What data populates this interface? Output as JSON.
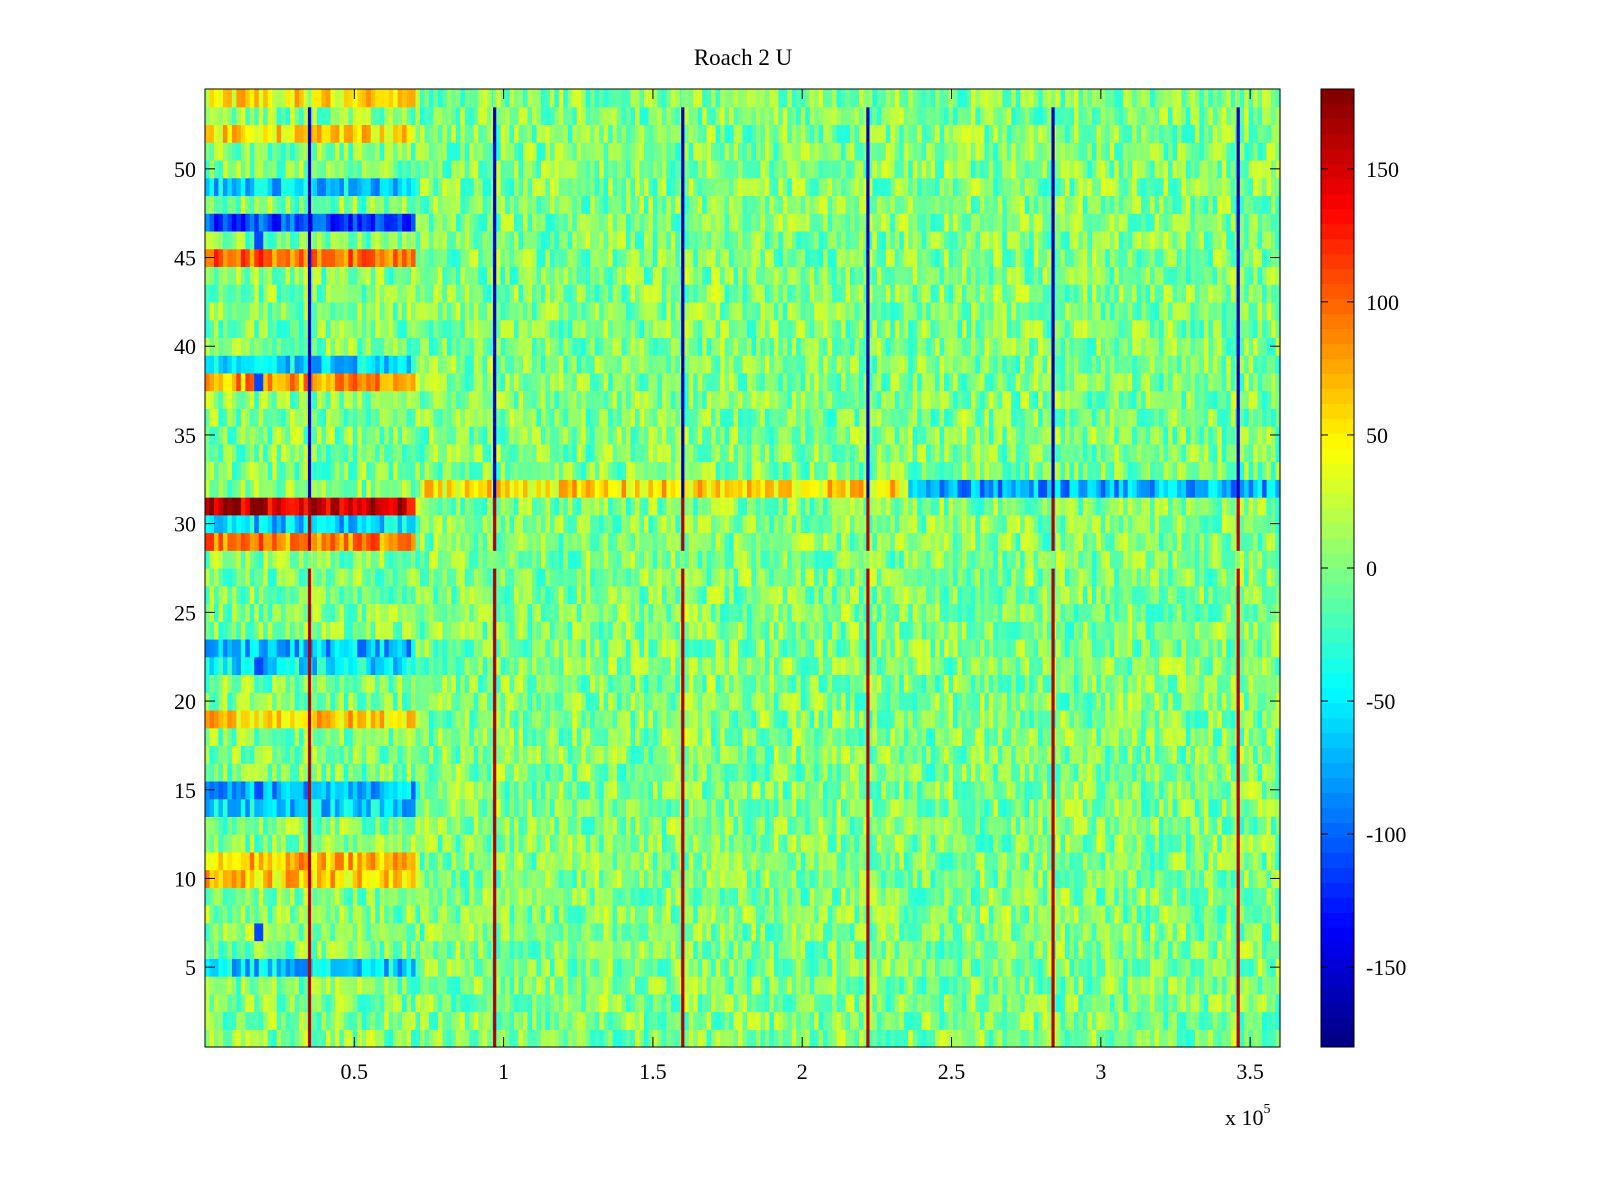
{
  "chart_data": {
    "type": "heatmap",
    "title": "Roach 2 U",
    "xlabel": "",
    "ylabel": "",
    "x_exponent_label": "x 10",
    "x_exponent_power": "5",
    "xlim": [
      0,
      3.6
    ],
    "ylim": [
      0.5,
      54.5
    ],
    "xticks": [
      0.5,
      1,
      1.5,
      2,
      2.5,
      3,
      3.5
    ],
    "xtick_labels": [
      "0.5",
      "1",
      "1.5",
      "2",
      "2.5",
      "3",
      "3.5"
    ],
    "yticks": [
      5,
      10,
      15,
      20,
      25,
      30,
      35,
      40,
      45,
      50
    ],
    "ytick_labels": [
      "5",
      "10",
      "15",
      "20",
      "25",
      "30",
      "35",
      "40",
      "45",
      "50"
    ],
    "colorbar": {
      "colormap": "jet",
      "clim": [
        -180,
        180
      ],
      "ticks": [
        150,
        100,
        50,
        0,
        -50,
        -100,
        -150
      ],
      "tick_labels": [
        "150",
        "100",
        "50",
        "0",
        "-50",
        "-100",
        "-150"
      ]
    },
    "rows": 54,
    "notes": {
      "row_offsets_before_x0_7": [
        {
          "row": 54,
          "value": 50
        },
        {
          "row": 52,
          "value": 60
        },
        {
          "row": 49,
          "value": -60
        },
        {
          "row": 47,
          "value": -110
        },
        {
          "row": 45,
          "value": 100
        },
        {
          "row": 39,
          "value": -60
        },
        {
          "row": 38,
          "value": 80
        },
        {
          "row": 31,
          "value": 155
        },
        {
          "row": 30,
          "value": -60
        },
        {
          "row": 29,
          "value": 90
        },
        {
          "row": 23,
          "value": -70
        },
        {
          "row": 22,
          "value": -50
        },
        {
          "row": 19,
          "value": 60
        },
        {
          "row": 15,
          "value": -70
        },
        {
          "row": 14,
          "value": -60
        },
        {
          "row": 11,
          "value": 70
        },
        {
          "row": 10,
          "value": 60
        },
        {
          "row": 5,
          "value": -60
        }
      ],
      "row_32_segments": [
        {
          "x_start": 0.74,
          "x_end": 2.35,
          "value": 55
        },
        {
          "x_start": 2.35,
          "x_end": 3.6,
          "value": -75
        }
      ],
      "vertical_spike_columns": [
        0.35,
        0.97,
        1.6,
        2.22,
        2.84,
        3.46
      ]
    }
  }
}
